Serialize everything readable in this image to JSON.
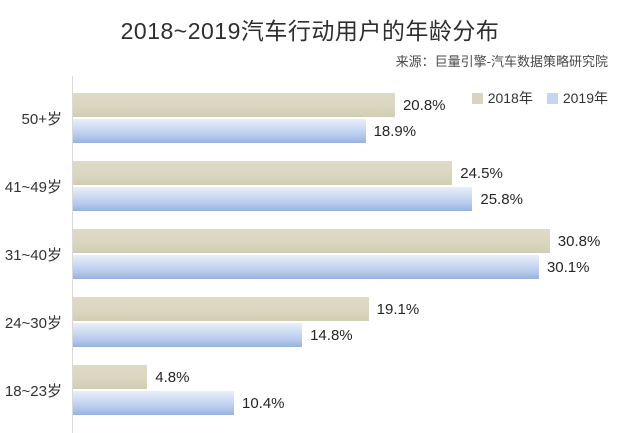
{
  "title": "2018~2019汽车行动用户的年龄分布",
  "source": "来源：巨量引擎-汽车数据策略研究院",
  "legend": {
    "items": [
      {
        "label": "2018年",
        "color": "#d8d4bf"
      },
      {
        "label": "2019年",
        "color": "#c6d6f0"
      }
    ],
    "position": "top-right"
  },
  "colors": {
    "bar_2018": "#d8d4bf",
    "bar_2019_top": "#e9eff9",
    "bar_2019_bottom": "#97b1dd",
    "axis_line": "#d9d9d9",
    "title_text": "#2e2e2e",
    "label_text": "#333333"
  },
  "chart_data": {
    "type": "bar",
    "orientation": "horizontal",
    "title": "2018~2019汽车行动用户的年龄分布",
    "source": "来源：巨量引擎-汽车数据策略研究院",
    "categories": [
      "50+岁",
      "41~49岁",
      "31~40岁",
      "24~30岁",
      "18~23岁"
    ],
    "series": [
      {
        "name": "2018年",
        "color": "#d8d4bf",
        "values": [
          20.8,
          24.5,
          30.8,
          19.1,
          4.8
        ]
      },
      {
        "name": "2019年",
        "color": "#aec6ea",
        "values": [
          18.9,
          25.8,
          30.1,
          14.8,
          10.4
        ]
      }
    ],
    "value_suffix": "%",
    "xlim": [
      0,
      34.5
    ],
    "grid": false,
    "data_labels": true,
    "legend_position": "top-right"
  }
}
